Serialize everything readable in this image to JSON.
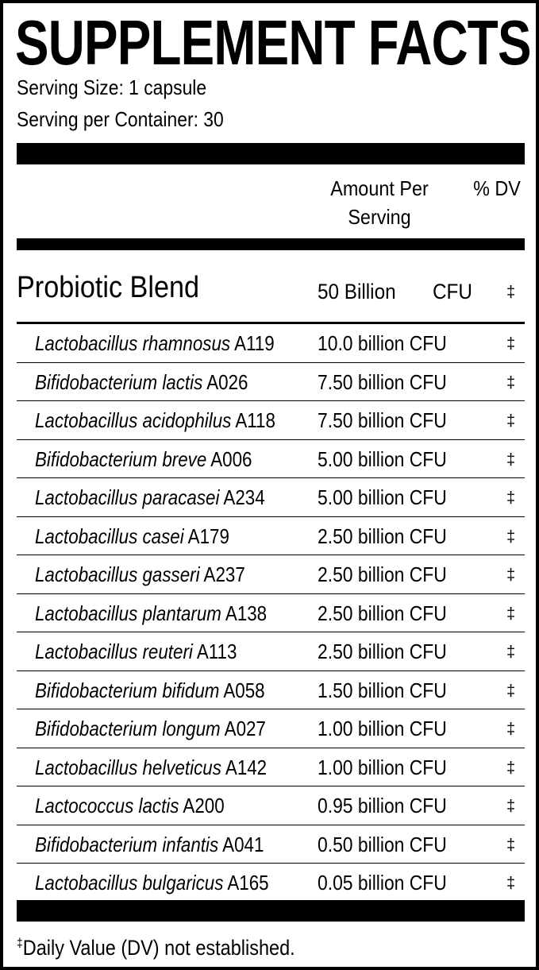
{
  "title": "SUPPLEMENT FACTS",
  "serving_size": "Serving Size: 1 capsule",
  "servings_per_container": "Serving per Container: 30",
  "header": {
    "amount_line1": "Amount Per",
    "amount_line2": "Serving",
    "dv": "% DV"
  },
  "blend": {
    "name": "Probiotic Blend",
    "amount": "50 Billion",
    "unit": "CFU",
    "dv": "‡"
  },
  "ingredients": [
    {
      "name": "Lactobacillus rhamnosus",
      "strain": "A119",
      "amount": "10.0 billion CFU",
      "dv": "‡"
    },
    {
      "name": "Bifidobacterium lactis",
      "strain": "A026",
      "amount": "7.50 billion CFU",
      "dv": "‡"
    },
    {
      "name": "Lactobacillus acidophilus",
      "strain": "A118",
      "amount": "7.50 billion CFU",
      "dv": "‡"
    },
    {
      "name": "Bifidobacterium breve",
      "strain": "A006",
      "amount": "5.00 billion CFU",
      "dv": "‡"
    },
    {
      "name": "Lactobacillus paracasei",
      "strain": "A234",
      "amount": "5.00 billion CFU",
      "dv": "‡"
    },
    {
      "name": "Lactobacillus casei",
      "strain": "A179",
      "amount": "2.50 billion CFU",
      "dv": "‡"
    },
    {
      "name": "Lactobacillus gasseri",
      "strain": "A237",
      "amount": "2.50 billion CFU",
      "dv": "‡"
    },
    {
      "name": "Lactobacillus plantarum",
      "strain": "A138",
      "amount": "2.50 billion CFU",
      "dv": "‡"
    },
    {
      "name": "Lactobacillus reuteri",
      "strain": "A113",
      "amount": "2.50 billion CFU",
      "dv": "‡"
    },
    {
      "name": "Bifidobacterium bifidum",
      "strain": "A058",
      "amount": "1.50 billion CFU",
      "dv": "‡"
    },
    {
      "name": "Bifidobacterium longum",
      "strain": "A027",
      "amount": "1.00 billion CFU",
      "dv": "‡"
    },
    {
      "name": "Lactobacillus helveticus",
      "strain": "A142",
      "amount": "1.00 billion CFU",
      "dv": "‡"
    },
    {
      "name": "Lactococcus lactis",
      "strain": "A200",
      "amount": "0.95 billion CFU",
      "dv": "‡"
    },
    {
      "name": "Bifidobacterium infantis",
      "strain": "A041",
      "amount": "0.50 billion CFU",
      "dv": "‡"
    },
    {
      "name": "Lactobacillus bulgaricus",
      "strain": "A165",
      "amount": "0.05 billion CFU",
      "dv": "‡"
    }
  ],
  "footnote": {
    "symbol": "‡",
    "text": "Daily Value (DV) not established."
  }
}
